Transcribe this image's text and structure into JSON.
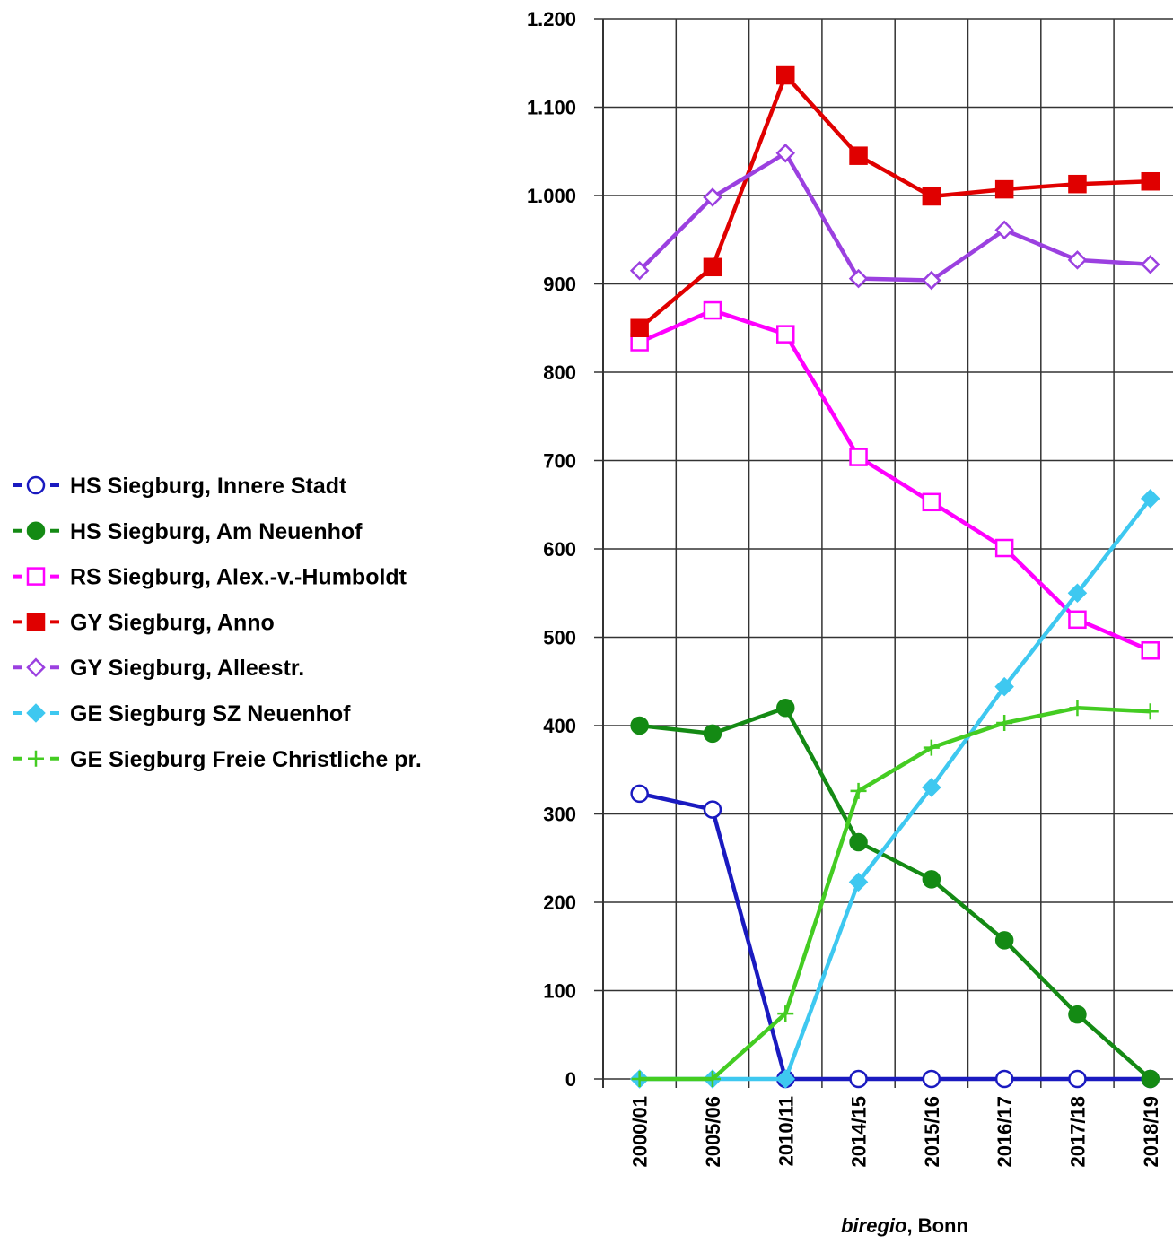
{
  "chart_data": {
    "type": "line",
    "categories": [
      "2000/01",
      "2005/06",
      "2010/11",
      "2014/15",
      "2015/16",
      "2016/17",
      "2017/18",
      "2018/19"
    ],
    "series": [
      {
        "name": "HS Siegburg, Innere Stadt",
        "color": "#1a1ac0",
        "marker": "circle-open",
        "values": [
          323,
          305,
          0,
          0,
          0,
          0,
          0,
          0
        ]
      },
      {
        "name": "HS Siegburg, Am Neuenhof",
        "color": "#148a14",
        "marker": "circle",
        "values": [
          400,
          391,
          420,
          268,
          226,
          157,
          73,
          0
        ]
      },
      {
        "name": "RS Siegburg, Alex.-v.-Humboldt",
        "color": "#ff00ff",
        "marker": "square-open",
        "values": [
          834,
          870,
          843,
          704,
          653,
          601,
          520,
          485
        ]
      },
      {
        "name": "GY Siegburg, Anno",
        "color": "#e00000",
        "marker": "square",
        "values": [
          850,
          919,
          1136,
          1045,
          999,
          1007,
          1013,
          1016
        ]
      },
      {
        "name": "GY Siegburg, Alleestr.",
        "color": "#9b40e0",
        "marker": "diamond-open",
        "values": [
          915,
          998,
          1048,
          906,
          904,
          961,
          927,
          922
        ]
      },
      {
        "name": "GE Siegburg SZ Neuenhof",
        "color": "#3ec8f0",
        "marker": "diamond",
        "values": [
          0,
          0,
          0,
          223,
          330,
          444,
          550,
          657
        ]
      },
      {
        "name": "GE Siegburg Freie Christliche pr.",
        "color": "#44cc22",
        "marker": "plus",
        "values": [
          0,
          0,
          74,
          326,
          375,
          403,
          420,
          416
        ]
      }
    ],
    "ylim": [
      0,
      1200
    ],
    "yticks": [
      0,
      100,
      200,
      300,
      400,
      500,
      600,
      700,
      800,
      900,
      {
        "value": 1000,
        "label": "1.000"
      },
      {
        "value": 1100,
        "label": "1.100"
      },
      {
        "value": 1200,
        "label": "1.200"
      }
    ],
    "grid": true,
    "legend": "left",
    "source": {
      "emphasis": "biregio",
      "rest": ", Bonn"
    }
  }
}
